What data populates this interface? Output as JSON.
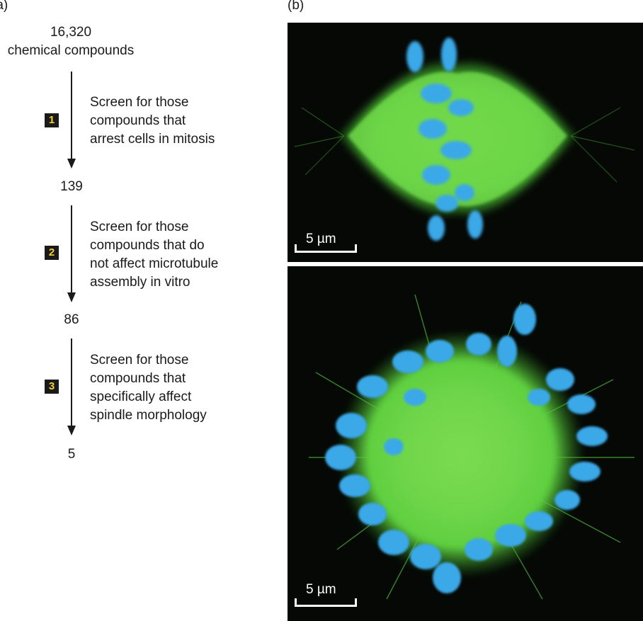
{
  "panel_a": {
    "label": "(a)",
    "start_count": "16,320",
    "start_label": "chemical compounds",
    "steps": [
      {
        "badge": "1",
        "lines": [
          "Screen for those",
          "compounds that",
          "arrest cells in mitosis"
        ],
        "result": "139"
      },
      {
        "badge": "2",
        "lines": [
          "Screen for those",
          "compounds that do",
          "not affect microtubule",
          "assembly in vitro"
        ],
        "result": "86"
      },
      {
        "badge": "3",
        "lines": [
          "Screen for those",
          "compounds that",
          "specifically affect",
          "spindle morphology"
        ],
        "result": "5"
      }
    ]
  },
  "panel_b": {
    "label": "(b)",
    "top_scale": "5 µm",
    "bottom_scale": "5 µm"
  },
  "colors": {
    "badge_bg": "#1a1a1a",
    "badge_text": "#f2d22e",
    "microtubule_green": "#5fd14a",
    "chromosome_blue": "#3aa8e8"
  }
}
